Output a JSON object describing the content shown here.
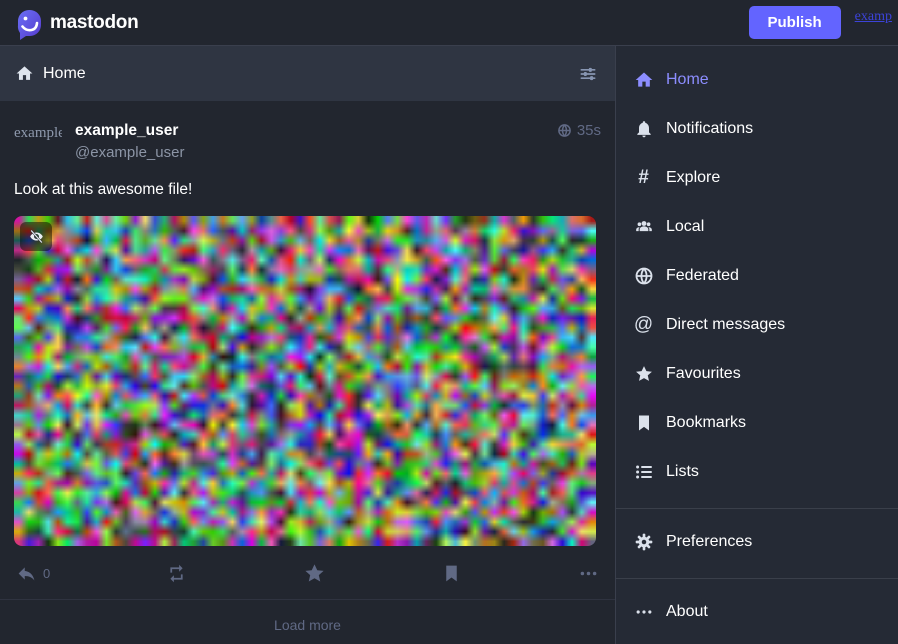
{
  "app": {
    "brand": "mastodon"
  },
  "top_bar": {
    "publish_label": "Publish",
    "corner_link": "examp"
  },
  "column": {
    "header": {
      "title": "Home"
    },
    "post": {
      "avatar_alt": "example",
      "display_name": "example_user",
      "handle": "@example_user",
      "visibility": "public",
      "timestamp": "35s",
      "content": "Look at this awesome file!",
      "reply_count": "0"
    },
    "load_more_label": "Load more"
  },
  "sidebar": {
    "items": [
      {
        "label": "Home",
        "icon": "home-icon",
        "active": true
      },
      {
        "label": "Notifications",
        "icon": "bell-icon",
        "active": false
      },
      {
        "label": "Explore",
        "icon": "hashtag-icon",
        "active": false
      },
      {
        "label": "Local",
        "icon": "users-icon",
        "active": false
      },
      {
        "label": "Federated",
        "icon": "globe-icon",
        "active": false
      },
      {
        "label": "Direct messages",
        "icon": "at-icon",
        "active": false
      },
      {
        "label": "Favourites",
        "icon": "star-icon",
        "active": false
      },
      {
        "label": "Bookmarks",
        "icon": "bookmark-icon",
        "active": false
      },
      {
        "label": "Lists",
        "icon": "list-icon",
        "active": false
      },
      {
        "label": "Preferences",
        "icon": "gear-icon",
        "active": false
      },
      {
        "label": "About",
        "icon": "ellipsis-icon",
        "active": false
      }
    ]
  },
  "colors": {
    "accent": "#6364ff",
    "active_link": "#8c8dff",
    "muted": "#606984",
    "corner_link_blue": "#3c43d9",
    "column_header_bg": "#2f3542",
    "background": "#22262f"
  }
}
